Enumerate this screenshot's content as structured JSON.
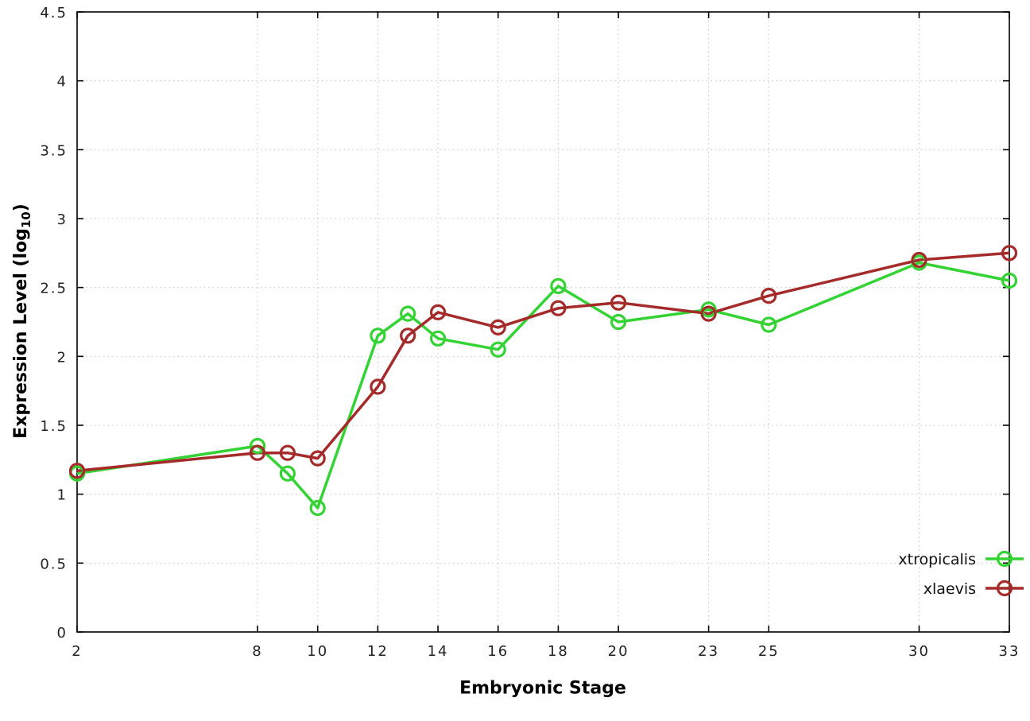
{
  "chart_data": {
    "type": "line",
    "title": "",
    "xlabel": "Embryonic Stage",
    "ylabel": "Expression Level (log10)",
    "ylabel_parts": {
      "main": "Expression Level (log",
      "sub": "10",
      "end": ")"
    },
    "x": [
      2,
      8,
      9,
      10,
      12,
      13,
      14,
      16,
      18,
      20,
      23,
      25,
      30,
      33
    ],
    "xticks": [
      2,
      8,
      10,
      12,
      14,
      16,
      18,
      20,
      23,
      25,
      30,
      33
    ],
    "yticks": [
      0,
      0.5,
      1,
      1.5,
      2,
      2.5,
      3,
      3.5,
      4,
      4.5
    ],
    "xlim": [
      2,
      33
    ],
    "ylim": [
      0,
      4.5
    ],
    "grid": true,
    "legend_position": "bottom-right",
    "series": [
      {
        "name": "xtropicalis",
        "color": "#33d333",
        "values": [
          1.15,
          1.35,
          1.15,
          0.9,
          2.15,
          2.31,
          2.13,
          2.05,
          2.51,
          2.25,
          2.34,
          2.23,
          2.68,
          2.55
        ]
      },
      {
        "name": "xlaevis",
        "color": "#a52a2a",
        "values": [
          1.17,
          1.3,
          1.3,
          1.26,
          1.78,
          2.15,
          2.32,
          2.21,
          2.35,
          2.39,
          2.31,
          2.44,
          2.7,
          2.75
        ]
      }
    ]
  }
}
